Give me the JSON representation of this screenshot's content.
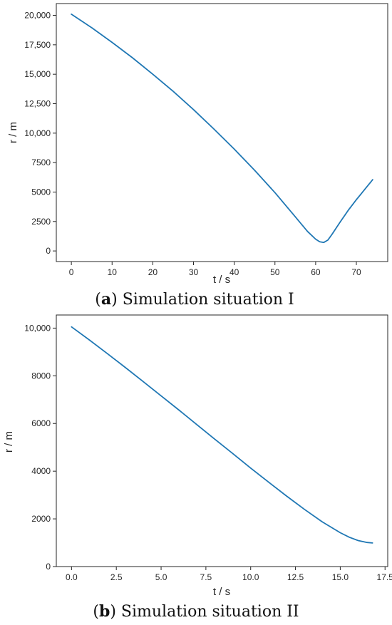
{
  "chart_data": [
    {
      "type": "line",
      "caption": {
        "open": "(",
        "letter": "a",
        "text": ") Simulation situation I"
      },
      "xlabel": "t / s",
      "ylabel": "r / m",
      "xlim": [
        -3.7,
        77.7
      ],
      "ylim": [
        -900,
        21000
      ],
      "xticks": [
        0,
        10,
        20,
        30,
        40,
        50,
        60,
        70
      ],
      "xtick_labels": [
        "0",
        "10",
        "20",
        "30",
        "40",
        "50",
        "60",
        "70"
      ],
      "yticks": [
        0,
        2500,
        5000,
        7500,
        10000,
        12500,
        15000,
        17500,
        20000
      ],
      "ytick_labels": [
        "0",
        "2500",
        "5000",
        "7500",
        "10,000",
        "12,500",
        "15,000",
        "17,500",
        "20,000"
      ],
      "grid": false,
      "series": [
        {
          "color": "#1f77b4",
          "x": [
            0,
            5,
            10,
            15,
            20,
            25,
            30,
            35,
            40,
            45,
            50,
            55,
            58,
            60,
            61,
            62,
            63,
            64,
            66,
            68,
            70,
            72,
            74
          ],
          "y": [
            20100,
            18950,
            17700,
            16400,
            15000,
            13550,
            12000,
            10350,
            8650,
            6850,
            4950,
            2900,
            1650,
            1000,
            780,
            720,
            920,
            1400,
            2450,
            3450,
            4350,
            5200,
            6050
          ]
        }
      ]
    },
    {
      "type": "line",
      "caption": {
        "open": "(",
        "letter": "b",
        "text": ") Simulation situation II"
      },
      "xlabel": "t / s",
      "ylabel": "r / m",
      "xlim": [
        -0.85,
        17.65
      ],
      "ylim": [
        0,
        10550
      ],
      "xticks": [
        0,
        2.5,
        5,
        7.5,
        10,
        12.5,
        15,
        17.5
      ],
      "xtick_labels": [
        "0.0",
        "2.5",
        "5.0",
        "7.5",
        "10.0",
        "12.5",
        "15.0",
        "17.5"
      ],
      "yticks": [
        0,
        2000,
        4000,
        6000,
        8000,
        10000
      ],
      "ytick_labels": [
        "0",
        "2000",
        "4000",
        "6000",
        "8000",
        "10,000"
      ],
      "grid": false,
      "series": [
        {
          "color": "#1f77b4",
          "x": [
            0,
            1,
            2,
            3,
            4,
            5,
            6,
            7,
            8,
            9,
            10,
            11,
            12,
            13,
            14,
            15,
            15.5,
            16,
            16.5,
            16.8
          ],
          "y": [
            10050,
            9500,
            8930,
            8350,
            7760,
            7160,
            6560,
            5950,
            5340,
            4740,
            4130,
            3540,
            2960,
            2400,
            1870,
            1420,
            1230,
            1090,
            1010,
            990
          ]
        }
      ]
    }
  ]
}
